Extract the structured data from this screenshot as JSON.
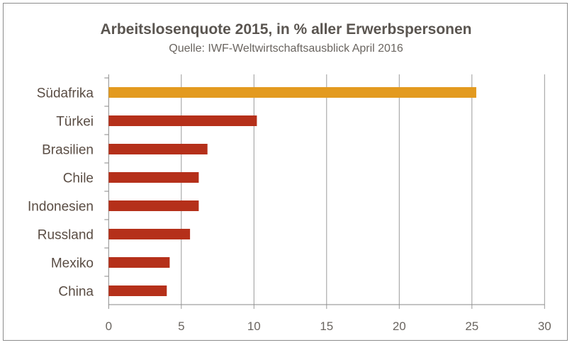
{
  "chart_data": {
    "type": "bar",
    "orientation": "horizontal",
    "title": "Arbeitslosenquote 2015, in % aller Erwerbspersonen",
    "subtitle": "Quelle: IWF-Weltwirtschaftsausblick April 2016",
    "categories": [
      "Südafrika",
      "Türkei",
      "Brasilien",
      "Chile",
      "Indonesien",
      "Russland",
      "Mexiko",
      "China"
    ],
    "values": [
      25.3,
      10.2,
      6.8,
      6.2,
      6.2,
      5.6,
      4.2,
      4.0
    ],
    "colors": [
      "#e39a1f",
      "#b5301a",
      "#b5301a",
      "#b5301a",
      "#b5301a",
      "#b5301a",
      "#b5301a",
      "#b5301a"
    ],
    "xlim": [
      0,
      30
    ],
    "xticks": [
      "0",
      "5",
      "10",
      "15",
      "20",
      "25",
      "30"
    ],
    "xlabel": "",
    "ylabel": "",
    "grid": "vertical",
    "legend": "none"
  }
}
